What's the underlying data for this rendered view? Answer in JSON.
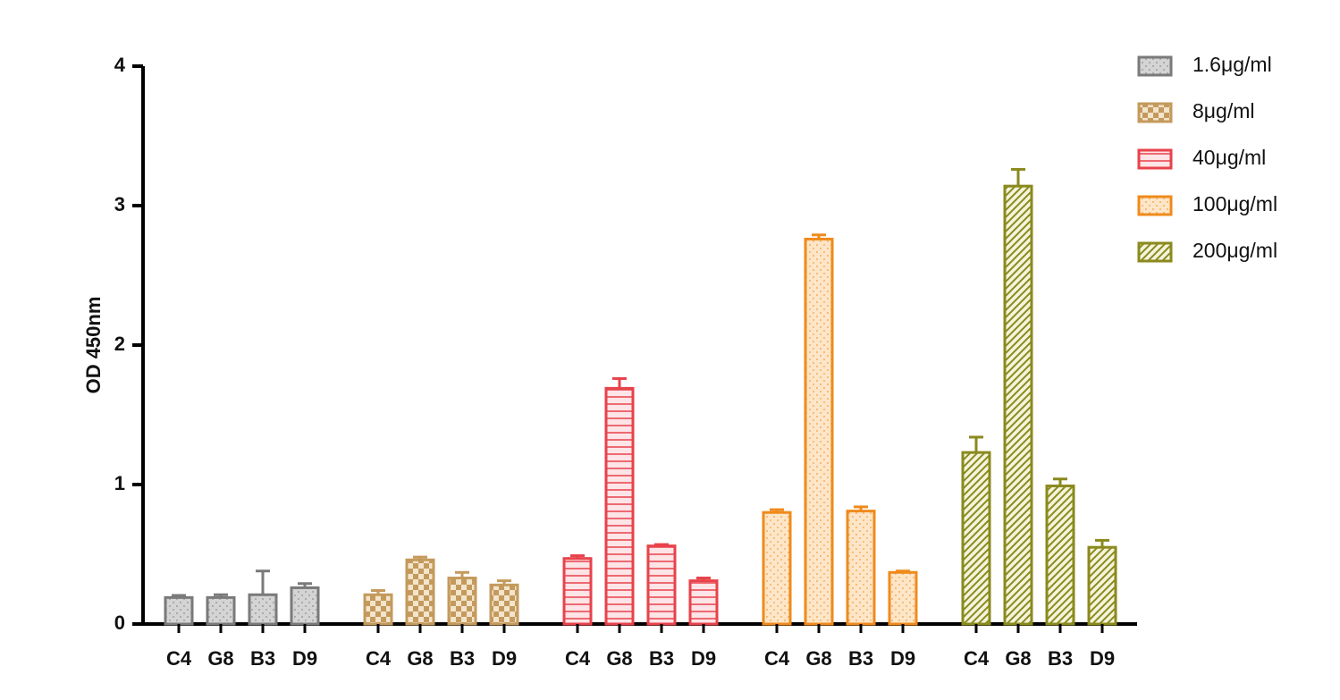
{
  "chart_data": {
    "type": "grouped_bar",
    "y_label": "OD 450nm",
    "categories": [
      "C4",
      "G8",
      "B3",
      "D9"
    ],
    "series": [
      {
        "name": "1.6μg/ml",
        "color": "#7a7a7a",
        "fill": "#d4d4d4",
        "pattern": "dots",
        "values": [
          0.19,
          0.19,
          0.21,
          0.26
        ],
        "errors": [
          0.015,
          0.02,
          0.17,
          0.03
        ]
      },
      {
        "name": "8μg/ml",
        "color": "#c49a5c",
        "fill": "#f3e4cc",
        "pattern": "checker",
        "values": [
          0.21,
          0.46,
          0.33,
          0.28
        ],
        "errors": [
          0.03,
          0.02,
          0.04,
          0.03
        ]
      },
      {
        "name": "40μg/ml",
        "color": "#e8424b",
        "fill": "#fde4e6",
        "pattern": "hlines",
        "values": [
          0.47,
          1.69,
          0.56,
          0.31
        ],
        "errors": [
          0.02,
          0.07,
          0.01,
          0.02
        ]
      },
      {
        "name": "100μg/ml",
        "color": "#f08a1c",
        "fill": "#fde6c8",
        "pattern": "dots",
        "values": [
          0.8,
          2.76,
          0.81,
          0.37
        ],
        "errors": [
          0.02,
          0.03,
          0.03,
          0.01
        ]
      },
      {
        "name": "200μg/ml",
        "color": "#8a8a1e",
        "fill": "#f4f4dc",
        "pattern": "diagonal",
        "values": [
          1.23,
          3.14,
          0.99,
          0.55
        ],
        "errors": [
          0.11,
          0.12,
          0.05,
          0.05
        ]
      }
    ],
    "ylim": [
      0,
      4
    ],
    "yticks": [
      0,
      1,
      2,
      3,
      4
    ]
  }
}
